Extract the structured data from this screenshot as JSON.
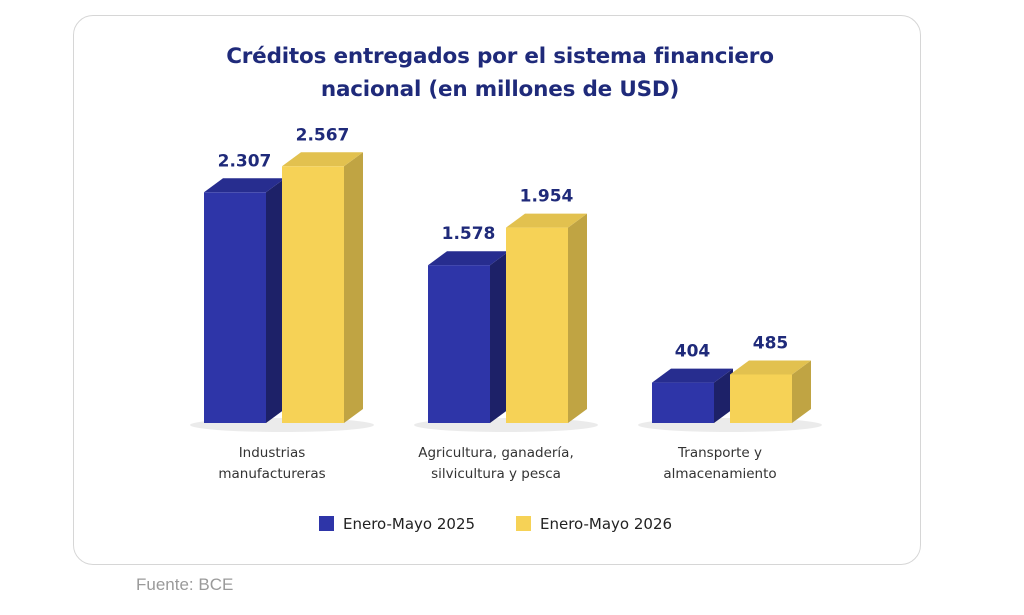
{
  "chart_data": {
    "type": "bar",
    "title_lines": [
      "Créditos entregados por el sistema financiero",
      "nacional (en millones de USD)"
    ],
    "categories": [
      [
        "Industrias",
        "manufactureras"
      ],
      [
        "Agricultura, ganadería,",
        "silvicultura y pesca"
      ],
      [
        "Transporte y",
        "almacenamiento"
      ]
    ],
    "series": [
      {
        "name": "Enero-Mayo 2025",
        "values": [
          2307,
          1578,
          404
        ],
        "labels": [
          "2.307",
          "1.578",
          "404"
        ],
        "color": "#2e35a8"
      },
      {
        "name": "Enero-Mayo 2026",
        "values": [
          2567,
          1954,
          485
        ],
        "labels": [
          "2.567",
          "1.954",
          "485"
        ],
        "color": "#f6d256"
      }
    ],
    "legend_position": "bottom",
    "grid": false
  },
  "source": "Fuente: BCE"
}
